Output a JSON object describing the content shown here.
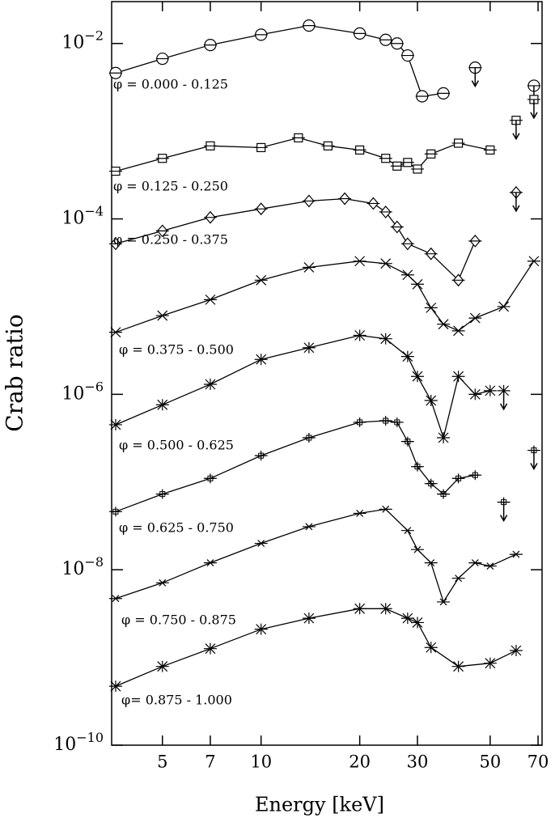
{
  "chart_data": {
    "type": "line",
    "xlabel": "Energy [keV]",
    "ylabel": "Crab ratio",
    "xlog": true,
    "ylog": true,
    "color": "#000000",
    "xlim": [
      3.5,
      72
    ],
    "ylim": [
      1e-10,
      0.03
    ],
    "xticks": [
      5,
      7,
      10,
      20,
      30,
      50,
      70
    ],
    "yticks": [
      {
        "value": 0.01,
        "label": "10−2"
      },
      {
        "value": 0.0001,
        "label": "10−4"
      },
      {
        "value": 1e-06,
        "label": "10−6"
      },
      {
        "value": 1e-08,
        "label": "10−8"
      },
      {
        "value": 1e-10,
        "label": "10−10"
      }
    ],
    "series": [
      {
        "name": "φ = 0.000 - 0.125",
        "marker": "circle",
        "x": [
          3.6,
          5,
          7,
          10,
          14,
          20,
          24,
          26,
          28,
          31,
          36
        ],
        "values": [
          0.0046,
          0.0067,
          0.0096,
          0.0126,
          0.016,
          0.013,
          0.011,
          0.01,
          0.0073,
          0.0025,
          0.0027
        ],
        "limits": {
          "x": [
            45,
            68
          ],
          "values": [
            0.0053,
            0.0033
          ]
        }
      },
      {
        "name": "φ = 0.125 - 0.250",
        "marker": "square",
        "x": [
          3.6,
          5,
          7,
          10,
          13,
          16,
          20,
          24,
          26,
          28,
          30,
          33,
          40,
          50
        ],
        "values": [
          0.00035,
          0.00049,
          0.00068,
          0.00065,
          0.00084,
          0.00068,
          0.00061,
          0.00049,
          0.0004,
          0.00044,
          0.00037,
          0.00055,
          0.00073,
          0.00061
        ],
        "limits": {
          "x": [
            60,
            68
          ],
          "values": [
            0.00133,
            0.0023
          ]
        }
      },
      {
        "name": "φ = 0.250 - 0.375",
        "marker": "diamond",
        "x": [
          3.6,
          5,
          7,
          10,
          14,
          18,
          22,
          24,
          26,
          28,
          33,
          40,
          45
        ],
        "values": [
          5.2e-05,
          7.3e-05,
          0.000104,
          0.00013,
          0.00016,
          0.00017,
          0.00015,
          0.00012,
          8.1e-05,
          5.2e-05,
          4e-05,
          2e-05,
          5.6e-05
        ],
        "limits": {
          "x": [
            60
          ],
          "values": [
            0.0002
          ]
        }
      },
      {
        "name": "φ = 0.375 - 0.500",
        "marker": "cross",
        "x": [
          3.6,
          5,
          7,
          10,
          14,
          20,
          24,
          28,
          30,
          33,
          36,
          40,
          45,
          55,
          68
        ],
        "values": [
          5.1e-06,
          7.9e-06,
          1.2e-05,
          2e-05,
          2.8e-05,
          3.3e-05,
          3.1e-05,
          2.3e-05,
          1.8e-05,
          9.7e-06,
          6.3e-06,
          5.3e-06,
          7.4e-06,
          1e-05,
          3.3e-05
        ]
      },
      {
        "name": "φ = 0.500 - 0.625",
        "marker": "asterisk",
        "x": [
          3.6,
          5,
          7,
          10,
          14,
          20,
          24,
          28,
          30,
          33,
          36,
          40,
          45,
          50
        ],
        "values": [
          4.5e-07,
          7.6e-07,
          1.3e-06,
          2.5e-06,
          3.4e-06,
          4.7e-06,
          4.3e-06,
          2.7e-06,
          1.6e-06,
          8.5e-07,
          3.2e-07,
          1.6e-06,
          1e-06,
          1.1e-06
        ],
        "limits": {
          "x": [
            55
          ],
          "values": [
            1.1e-06
          ]
        }
      },
      {
        "name": "φ = 0.625 - 0.750",
        "marker": "plus",
        "x": [
          3.6,
          5,
          7,
          10,
          14,
          20,
          24,
          26,
          28,
          30,
          33,
          36,
          40,
          45
        ],
        "values": [
          4.6e-08,
          7.3e-08,
          1.1e-07,
          2e-07,
          3.2e-07,
          4.8e-07,
          5e-07,
          4.8e-07,
          2.9e-07,
          1.5e-07,
          9.6e-08,
          7.3e-08,
          1.1e-07,
          1.2e-07
        ],
        "limits": {
          "x": [
            55,
            68
          ],
          "values": [
            5.9e-08,
            2.3e-07
          ]
        }
      },
      {
        "name": "φ = 0.750 - 0.875",
        "marker": "xsmall",
        "x": [
          3.6,
          5,
          7,
          10,
          14,
          20,
          24,
          28,
          30,
          33,
          36,
          40,
          45,
          50,
          60
        ],
        "values": [
          4.7e-09,
          7.1e-09,
          1.2e-08,
          2e-08,
          3.1e-08,
          4.4e-08,
          4.9e-08,
          2.8e-08,
          1.7e-08,
          1.2e-08,
          4.3e-09,
          8e-09,
          1.2e-08,
          1.1e-08,
          1.5e-08
        ]
      },
      {
        "name": "φ= 0.875 - 1.000",
        "marker": "asterisk",
        "x": [
          3.6,
          5,
          7,
          10,
          14,
          20,
          24,
          28,
          30,
          33,
          40,
          50,
          60
        ],
        "values": [
          4.7e-10,
          7.9e-10,
          1.26e-09,
          2.1e-09,
          2.8e-09,
          3.6e-09,
          3.6e-09,
          2.8e-09,
          2.5e-09,
          1.3e-09,
          7.9e-10,
          8.6e-10,
          1.2e-09
        ]
      }
    ]
  }
}
